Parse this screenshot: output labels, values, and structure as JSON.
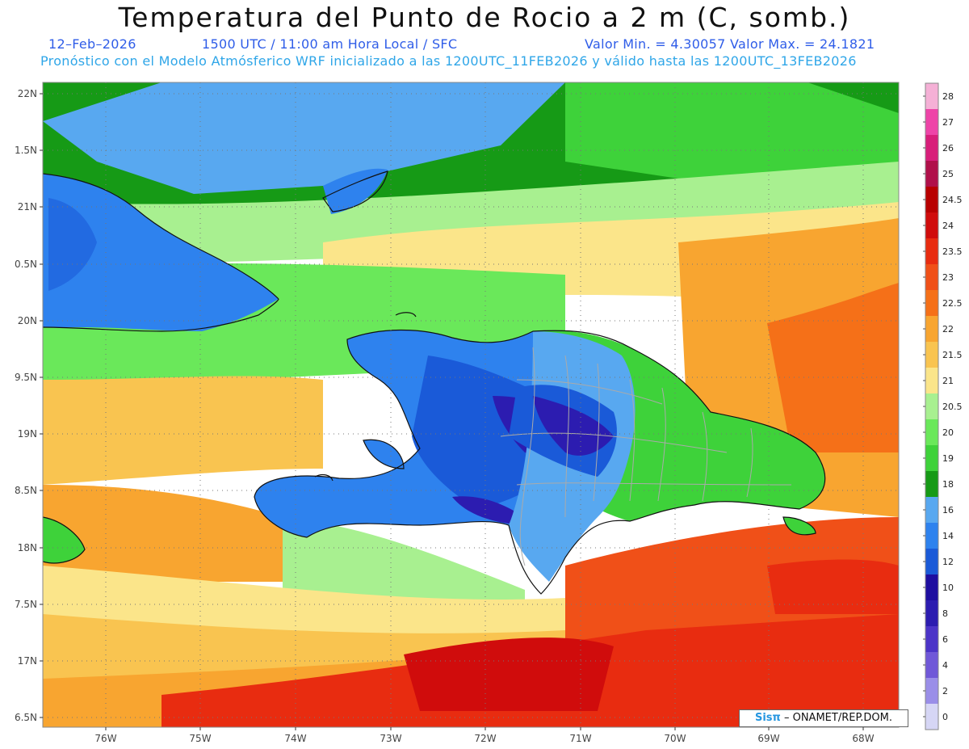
{
  "header": {
    "title": "Temperatura del Punto de Rocio a 2 m (C, somb.)",
    "date": "12–Feb–2026",
    "time": "1500 UTC / 11:00 am Hora Local / SFC",
    "min_max": "Valor Min. = 4.30057   Valor Max. = 24.1821",
    "model_info": "Pronóstico con el Modelo Atmósferico WRF inicializado a las 1200UTC_11FEB2026 y válido hasta las  1200UTC_13FEB2026"
  },
  "map": {
    "lat_labels": [
      "22N",
      "1.5N",
      "21N",
      "0.5N",
      "20N",
      "9.5N",
      "19N",
      "8.5N",
      "18N",
      "7.5N",
      "17N",
      "6.5N"
    ],
    "lon_labels": [
      "76W",
      "75W",
      "74W",
      "73W",
      "72W",
      "71W",
      "70W",
      "69W",
      "68W"
    ]
  },
  "legend": {
    "labels": [
      "28",
      "27",
      "26",
      "25",
      "24.5",
      "24",
      "23.5",
      "23",
      "22.5",
      "22",
      "21.5",
      "21",
      "20.5",
      "20",
      "19",
      "18",
      "16",
      "14",
      "12",
      "10",
      "8",
      "6",
      "4",
      "2",
      "0"
    ],
    "colors": [
      "#f5b0d6",
      "#ee44a8",
      "#d81e7a",
      "#b0104a",
      "#b80000",
      "#d00c0c",
      "#e82c10",
      "#f05018",
      "#f57018",
      "#f8a530",
      "#f9c450",
      "#fbe58a",
      "#a8f090",
      "#6ae85a",
      "#3ed23a",
      "#169a16",
      "#58a8f0",
      "#2e82ee",
      "#1a5ad8",
      "#1e0ea0",
      "#2c1cb0",
      "#4c34c8",
      "#7058d8",
      "#9a8ee8",
      "#d6d6f5"
    ]
  },
  "credit": {
    "logo": "Sisπ",
    "text": "– ONAMET/REP.DOM."
  }
}
